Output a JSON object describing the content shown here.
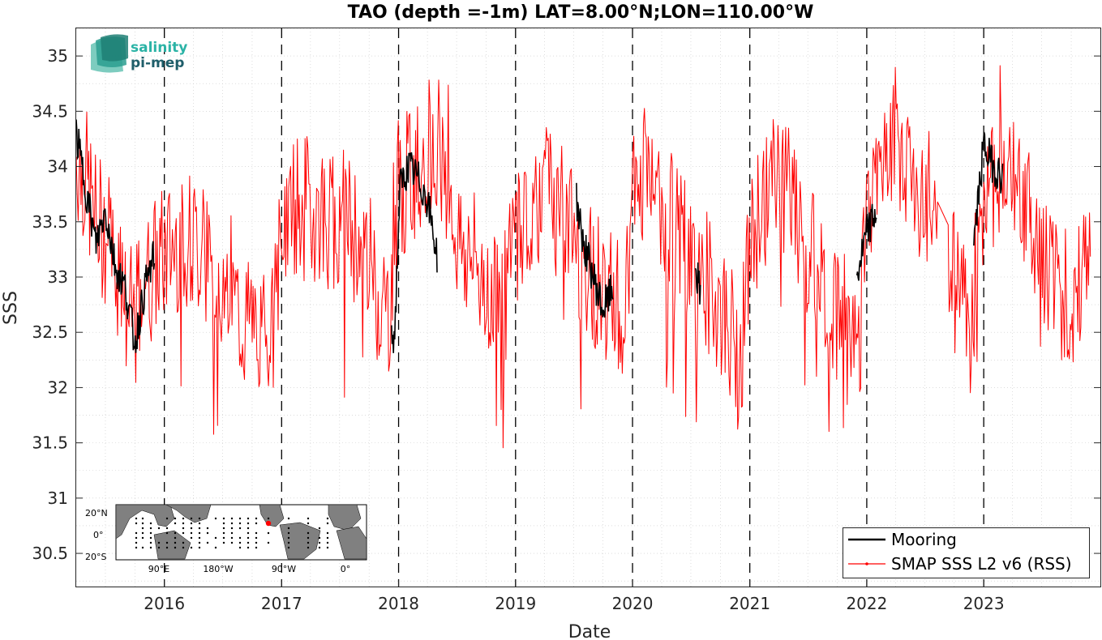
{
  "chart_data": {
    "type": "line",
    "title": "TAO (depth =-1m) LAT=8.00°N;LON=110.00°W",
    "xlabel": "Date",
    "ylabel": "SSS",
    "xlim": [
      "2015-04-01",
      "2023-12-31"
    ],
    "ylim": [
      30.2,
      35.25
    ],
    "x_ticks": [
      "2016-01-01",
      "2017-01-01",
      "2018-01-01",
      "2019-01-01",
      "2020-01-01",
      "2021-01-01",
      "2022-01-01",
      "2023-01-01"
    ],
    "x_tick_labels": [
      "2016",
      "2017",
      "2018",
      "2019",
      "2020",
      "2021",
      "2022",
      "2023"
    ],
    "y_ticks": [
      30.5,
      31,
      31.5,
      32,
      32.5,
      33,
      33.5,
      34,
      34.5,
      35
    ],
    "y_tick_labels": [
      "30.5",
      "31",
      "31.5",
      "32",
      "32.5",
      "33",
      "33.5",
      "34",
      "34.5",
      "35"
    ],
    "grid": true,
    "year_boundaries_dashed": true,
    "legend_position": "bottom-right",
    "series": [
      {
        "name": "Mooring",
        "color": "#000000",
        "points": [
          [
            "2015-04-01",
            34.3
          ],
          [
            "2015-05-01",
            33.8
          ],
          [
            "2015-06-01",
            33.3
          ],
          [
            "2015-07-01",
            33.6
          ],
          [
            "2015-08-01",
            33.1
          ],
          [
            "2015-09-01",
            32.9
          ],
          [
            "2015-10-01",
            32.4
          ],
          [
            "2015-11-01",
            32.9
          ],
          [
            "2015-12-01",
            33.2
          ],
          [
            "2017-12-10",
            32.4
          ],
          [
            "2017-12-20",
            32.5
          ],
          [
            "2018-01-05",
            33.8
          ],
          [
            "2018-02-01",
            34.0
          ],
          [
            "2018-03-01",
            33.9
          ],
          [
            "2018-04-01",
            33.7
          ],
          [
            "2018-05-01",
            33.2
          ],
          [
            "2019-07-10",
            33.7
          ],
          [
            "2019-08-01",
            33.3
          ],
          [
            "2019-09-01",
            33.0
          ],
          [
            "2019-10-01",
            32.7
          ],
          [
            "2019-11-01",
            32.9
          ],
          [
            "2020-07-15",
            33.1
          ],
          [
            "2020-08-01",
            32.8
          ],
          [
            "2021-12-01",
            33.0
          ],
          [
            "2022-01-01",
            33.4
          ],
          [
            "2022-02-01",
            33.6
          ],
          [
            "2022-12-01",
            33.3
          ],
          [
            "2023-01-01",
            34.2
          ],
          [
            "2023-02-01",
            34.0
          ],
          [
            "2023-03-01",
            33.9
          ]
        ]
      },
      {
        "name": "SMAP SSS L2 v6 (RSS)",
        "color": "#ff0000",
        "points": [
          [
            "2015-04-01",
            34.1
          ],
          [
            "2015-05-01",
            33.9
          ],
          [
            "2015-06-01",
            33.5
          ],
          [
            "2015-07-01",
            33.4
          ],
          [
            "2015-08-01",
            33.1
          ],
          [
            "2015-09-01",
            32.7
          ],
          [
            "2015-10-01",
            32.6
          ],
          [
            "2015-11-01",
            32.9
          ],
          [
            "2015-12-01",
            33.1
          ],
          [
            "2016-01-01",
            33.2
          ],
          [
            "2016-02-01",
            33.3
          ],
          [
            "2016-03-01",
            33.4
          ],
          [
            "2016-04-01",
            33.3
          ],
          [
            "2016-05-01",
            33.2
          ],
          [
            "2016-06-01",
            33.0
          ],
          [
            "2016-07-01",
            32.9
          ],
          [
            "2016-08-01",
            32.8
          ],
          [
            "2016-09-01",
            32.6
          ],
          [
            "2016-10-01",
            32.6
          ],
          [
            "2016-11-01",
            32.5
          ],
          [
            "2016-12-01",
            32.4
          ],
          [
            "2017-01-01",
            33.4
          ],
          [
            "2017-02-01",
            33.6
          ],
          [
            "2017-03-01",
            33.7
          ],
          [
            "2017-04-01",
            33.6
          ],
          [
            "2017-05-01",
            33.6
          ],
          [
            "2017-06-01",
            33.5
          ],
          [
            "2017-07-01",
            33.6
          ],
          [
            "2017-08-01",
            33.5
          ],
          [
            "2017-09-01",
            33.3
          ],
          [
            "2017-10-01",
            33.2
          ],
          [
            "2017-11-01",
            32.8
          ],
          [
            "2017-12-01",
            32.7
          ],
          [
            "2018-01-01",
            33.7
          ],
          [
            "2018-02-01",
            33.9
          ],
          [
            "2018-03-01",
            34.0
          ],
          [
            "2018-04-01",
            34.2
          ],
          [
            "2018-05-01",
            34.3
          ],
          [
            "2018-06-01",
            33.8
          ],
          [
            "2018-07-01",
            33.4
          ],
          [
            "2018-08-01",
            33.2
          ],
          [
            "2018-09-01",
            33.1
          ],
          [
            "2018-10-01",
            33.0
          ],
          [
            "2018-11-01",
            32.9
          ],
          [
            "2018-12-01",
            32.8
          ],
          [
            "2019-01-01",
            33.4
          ],
          [
            "2019-02-01",
            33.6
          ],
          [
            "2019-03-01",
            33.7
          ],
          [
            "2019-04-01",
            33.8
          ],
          [
            "2019-05-01",
            33.7
          ],
          [
            "2019-06-01",
            33.5
          ],
          [
            "2019-07-01",
            33.4
          ],
          [
            "2019-08-01",
            33.1
          ],
          [
            "2019-09-01",
            33.0
          ],
          [
            "2019-10-01",
            32.9
          ],
          [
            "2019-11-01",
            32.8
          ],
          [
            "2019-12-01",
            32.7
          ],
          [
            "2020-01-01",
            33.6
          ],
          [
            "2020-02-01",
            33.9
          ],
          [
            "2020-03-01",
            33.9
          ],
          [
            "2020-04-01",
            33.7
          ],
          [
            "2020-05-01",
            33.5
          ],
          [
            "2020-06-01",
            33.3
          ],
          [
            "2020-07-01",
            33.1
          ],
          [
            "2020-08-01",
            33.0
          ],
          [
            "2020-09-01",
            32.9
          ],
          [
            "2020-10-01",
            32.7
          ],
          [
            "2020-11-01",
            32.5
          ],
          [
            "2020-12-01",
            32.2
          ],
          [
            "2021-01-01",
            33.2
          ],
          [
            "2021-02-01",
            33.6
          ],
          [
            "2021-03-01",
            33.8
          ],
          [
            "2021-04-01",
            33.9
          ],
          [
            "2021-05-01",
            33.8
          ],
          [
            "2021-06-01",
            33.5
          ],
          [
            "2021-07-01",
            33.3
          ],
          [
            "2021-08-01",
            33.0
          ],
          [
            "2021-09-01",
            32.9
          ],
          [
            "2021-10-01",
            32.7
          ],
          [
            "2021-11-01",
            32.5
          ],
          [
            "2021-12-01",
            32.6
          ],
          [
            "2022-01-01",
            33.6
          ],
          [
            "2022-02-01",
            34.0
          ],
          [
            "2022-03-01",
            34.2
          ],
          [
            "2022-04-01",
            34.3
          ],
          [
            "2022-05-01",
            34.1
          ],
          [
            "2022-06-01",
            33.9
          ],
          [
            "2022-07-01",
            33.8
          ],
          [
            "2022-08-01",
            33.7
          ],
          [
            "2022-09-01",
            33.3
          ],
          [
            "2022-10-01",
            33.0
          ],
          [
            "2022-11-01",
            32.8
          ],
          [
            "2022-12-01",
            32.6
          ],
          [
            "2023-01-01",
            33.4
          ],
          [
            "2023-02-01",
            33.9
          ],
          [
            "2023-03-01",
            34.1
          ],
          [
            "2023-04-01",
            34.0
          ],
          [
            "2023-05-01",
            33.7
          ],
          [
            "2023-06-01",
            33.5
          ],
          [
            "2023-07-01",
            33.2
          ],
          [
            "2023-08-01",
            33.1
          ],
          [
            "2023-09-01",
            32.9
          ],
          [
            "2023-10-01",
            32.8
          ],
          [
            "2023-11-01",
            32.9
          ],
          [
            "2023-12-01",
            33.1
          ]
        ]
      }
    ],
    "inset_map": {
      "lat_labels": [
        "20°N",
        "0°",
        "20°S"
      ],
      "lon_labels": [
        "90°E",
        "180°W",
        "90°W",
        "0°"
      ],
      "station_marker_color": "#ff0000"
    }
  },
  "logo": {
    "line1": "salinity",
    "line2": "pi-mep"
  }
}
